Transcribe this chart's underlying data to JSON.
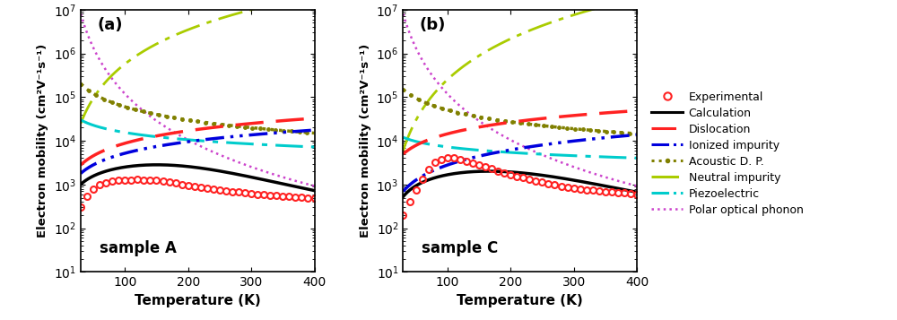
{
  "T_range": [
    30,
    400
  ],
  "ylim": [
    10,
    10000000.0
  ],
  "xlabel": "Temperature (K)",
  "ylabel": "Electron mobility (cm²V⁻¹s⁻¹)",
  "panel_labels": [
    "(a)",
    "(b)"
  ],
  "sample_labels": [
    "sample A",
    "sample C"
  ],
  "colors": {
    "experimental": "#ff2222",
    "calculation": "#000000",
    "dislocation": "#ff2222",
    "ionized": "#0000dd",
    "acoustic": "#808000",
    "neutral": "#aacc00",
    "piezoelectric": "#00cccc",
    "polar": "#cc44cc"
  },
  "legend_labels": [
    "Experimental",
    "Calculation",
    "Dislocation",
    "Ionized impurity",
    "Acoustic D. P.",
    "Neutral impurity",
    "Piezoelectric",
    "Polar optical phonon"
  ]
}
